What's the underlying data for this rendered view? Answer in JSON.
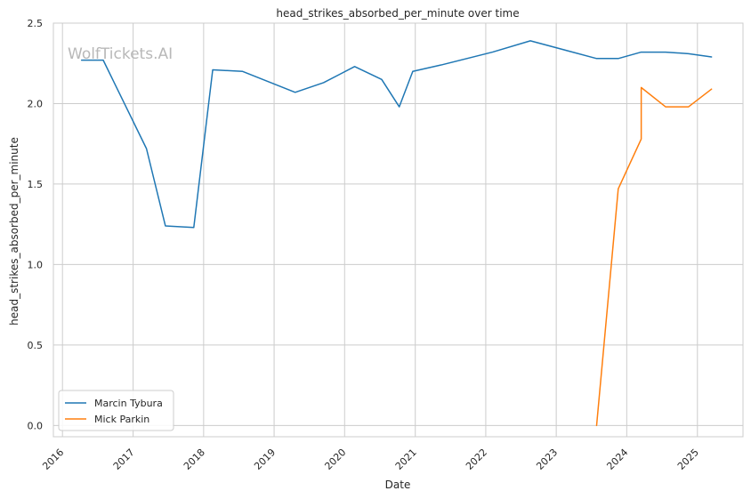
{
  "chart_data": {
    "type": "line",
    "title": "head_strikes_absorbed_per_minute over time",
    "xlabel": "Date",
    "ylabel": "head_strikes_absorbed_per_minute",
    "watermark": "WolfTickets.AI",
    "xlim": [
      "2015-11-15",
      "2025-08-25"
    ],
    "ylim": [
      -0.07,
      2.5
    ],
    "yticks": [
      "0.0",
      "0.5",
      "1.0",
      "1.5",
      "2.0",
      "2.5"
    ],
    "xticks": [
      "2016",
      "2017",
      "2018",
      "2019",
      "2020",
      "2021",
      "2022",
      "2023",
      "2024",
      "2025"
    ],
    "grid": true,
    "legend_position": "lower-left",
    "series": [
      {
        "name": "Marcin Tybura",
        "color": "#1f77b4",
        "x": [
          "2016-04-09",
          "2016-07-30",
          "2017-03-11",
          "2017-06-17",
          "2017-11-11",
          "2018-02-17",
          "2018-07-22",
          "2019-04-20",
          "2019-09-14",
          "2020-02-22",
          "2020-07-11",
          "2020-10-10",
          "2020-12-19",
          "2021-05-15",
          "2022-02-05",
          "2022-08-20",
          "2023-07-29",
          "2023-11-18",
          "2024-03-16",
          "2024-07-20",
          "2024-11-16",
          "2025-03-15"
        ],
        "y": [
          2.27,
          2.27,
          1.72,
          1.24,
          1.23,
          2.21,
          2.2,
          2.07,
          2.13,
          2.23,
          2.15,
          1.98,
          2.2,
          2.24,
          2.32,
          2.39,
          2.28,
          2.28,
          2.32,
          2.32,
          2.31,
          2.29
        ]
      },
      {
        "name": "Mick Parkin",
        "color": "#ff7f0e",
        "x": [
          "2023-07-29",
          "2023-11-18",
          "2024-03-16",
          "2024-03-16",
          "2024-07-20",
          "2024-11-16",
          "2025-03-15"
        ],
        "y": [
          0.0,
          1.47,
          1.78,
          2.1,
          1.98,
          1.98,
          2.09
        ]
      }
    ]
  }
}
